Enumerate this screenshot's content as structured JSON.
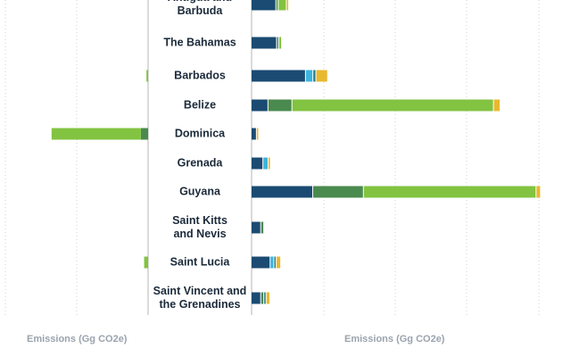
{
  "chart_data": {
    "type": "bar",
    "orientation": "horizontal",
    "stacking": "stacked",
    "colors": {
      "series1": "#1b4b72",
      "series2": "#4a8a4e",
      "series3": "#82c341",
      "series4": "#3bb4e0",
      "series5": "#2a7f8e",
      "series6": "#e8b830"
    },
    "categories": [
      "Antigua and\nBarbuda",
      "The Bahamas",
      "Barbados",
      "Belize",
      "Dominica",
      "Grenada",
      "Guyana",
      "Saint Kitts\nand Nevis",
      "Saint Lucia",
      "Saint Vincent and\nthe Grenadines"
    ],
    "left_panel": {
      "xlabel": "Emissions (Gg CO2e)",
      "series": [
        {
          "color_key": "series3",
          "values": [
            0,
            0,
            25,
            0,
            1350,
            0,
            0,
            0,
            60,
            0
          ]
        },
        {
          "color_key": "series2",
          "values": [
            0,
            0,
            0,
            0,
            110,
            0,
            0,
            0,
            0,
            0
          ]
        }
      ]
    },
    "right_panel": {
      "xlabel": "Emissions (Gg CO2e)",
      "series": [
        {
          "color_key": "series1",
          "values": [
            330,
            340,
            740,
            220,
            60,
            150,
            840,
            120,
            250,
            120
          ]
        },
        {
          "color_key": "series2",
          "values": [
            20,
            15,
            0,
            320,
            0,
            0,
            690,
            30,
            0,
            30
          ]
        },
        {
          "color_key": "series3",
          "values": [
            100,
            25,
            0,
            2780,
            0,
            0,
            2380,
            0,
            0,
            0
          ]
        },
        {
          "color_key": "series4",
          "values": [
            0,
            0,
            90,
            0,
            0,
            60,
            0,
            0,
            40,
            0
          ]
        },
        {
          "color_key": "series5",
          "values": [
            0,
            0,
            30,
            0,
            0,
            0,
            0,
            0,
            20,
            20
          ]
        },
        {
          "color_key": "series6",
          "values": [
            20,
            0,
            150,
            80,
            20,
            20,
            50,
            0,
            50,
            40
          ]
        }
      ]
    },
    "grid": true
  }
}
